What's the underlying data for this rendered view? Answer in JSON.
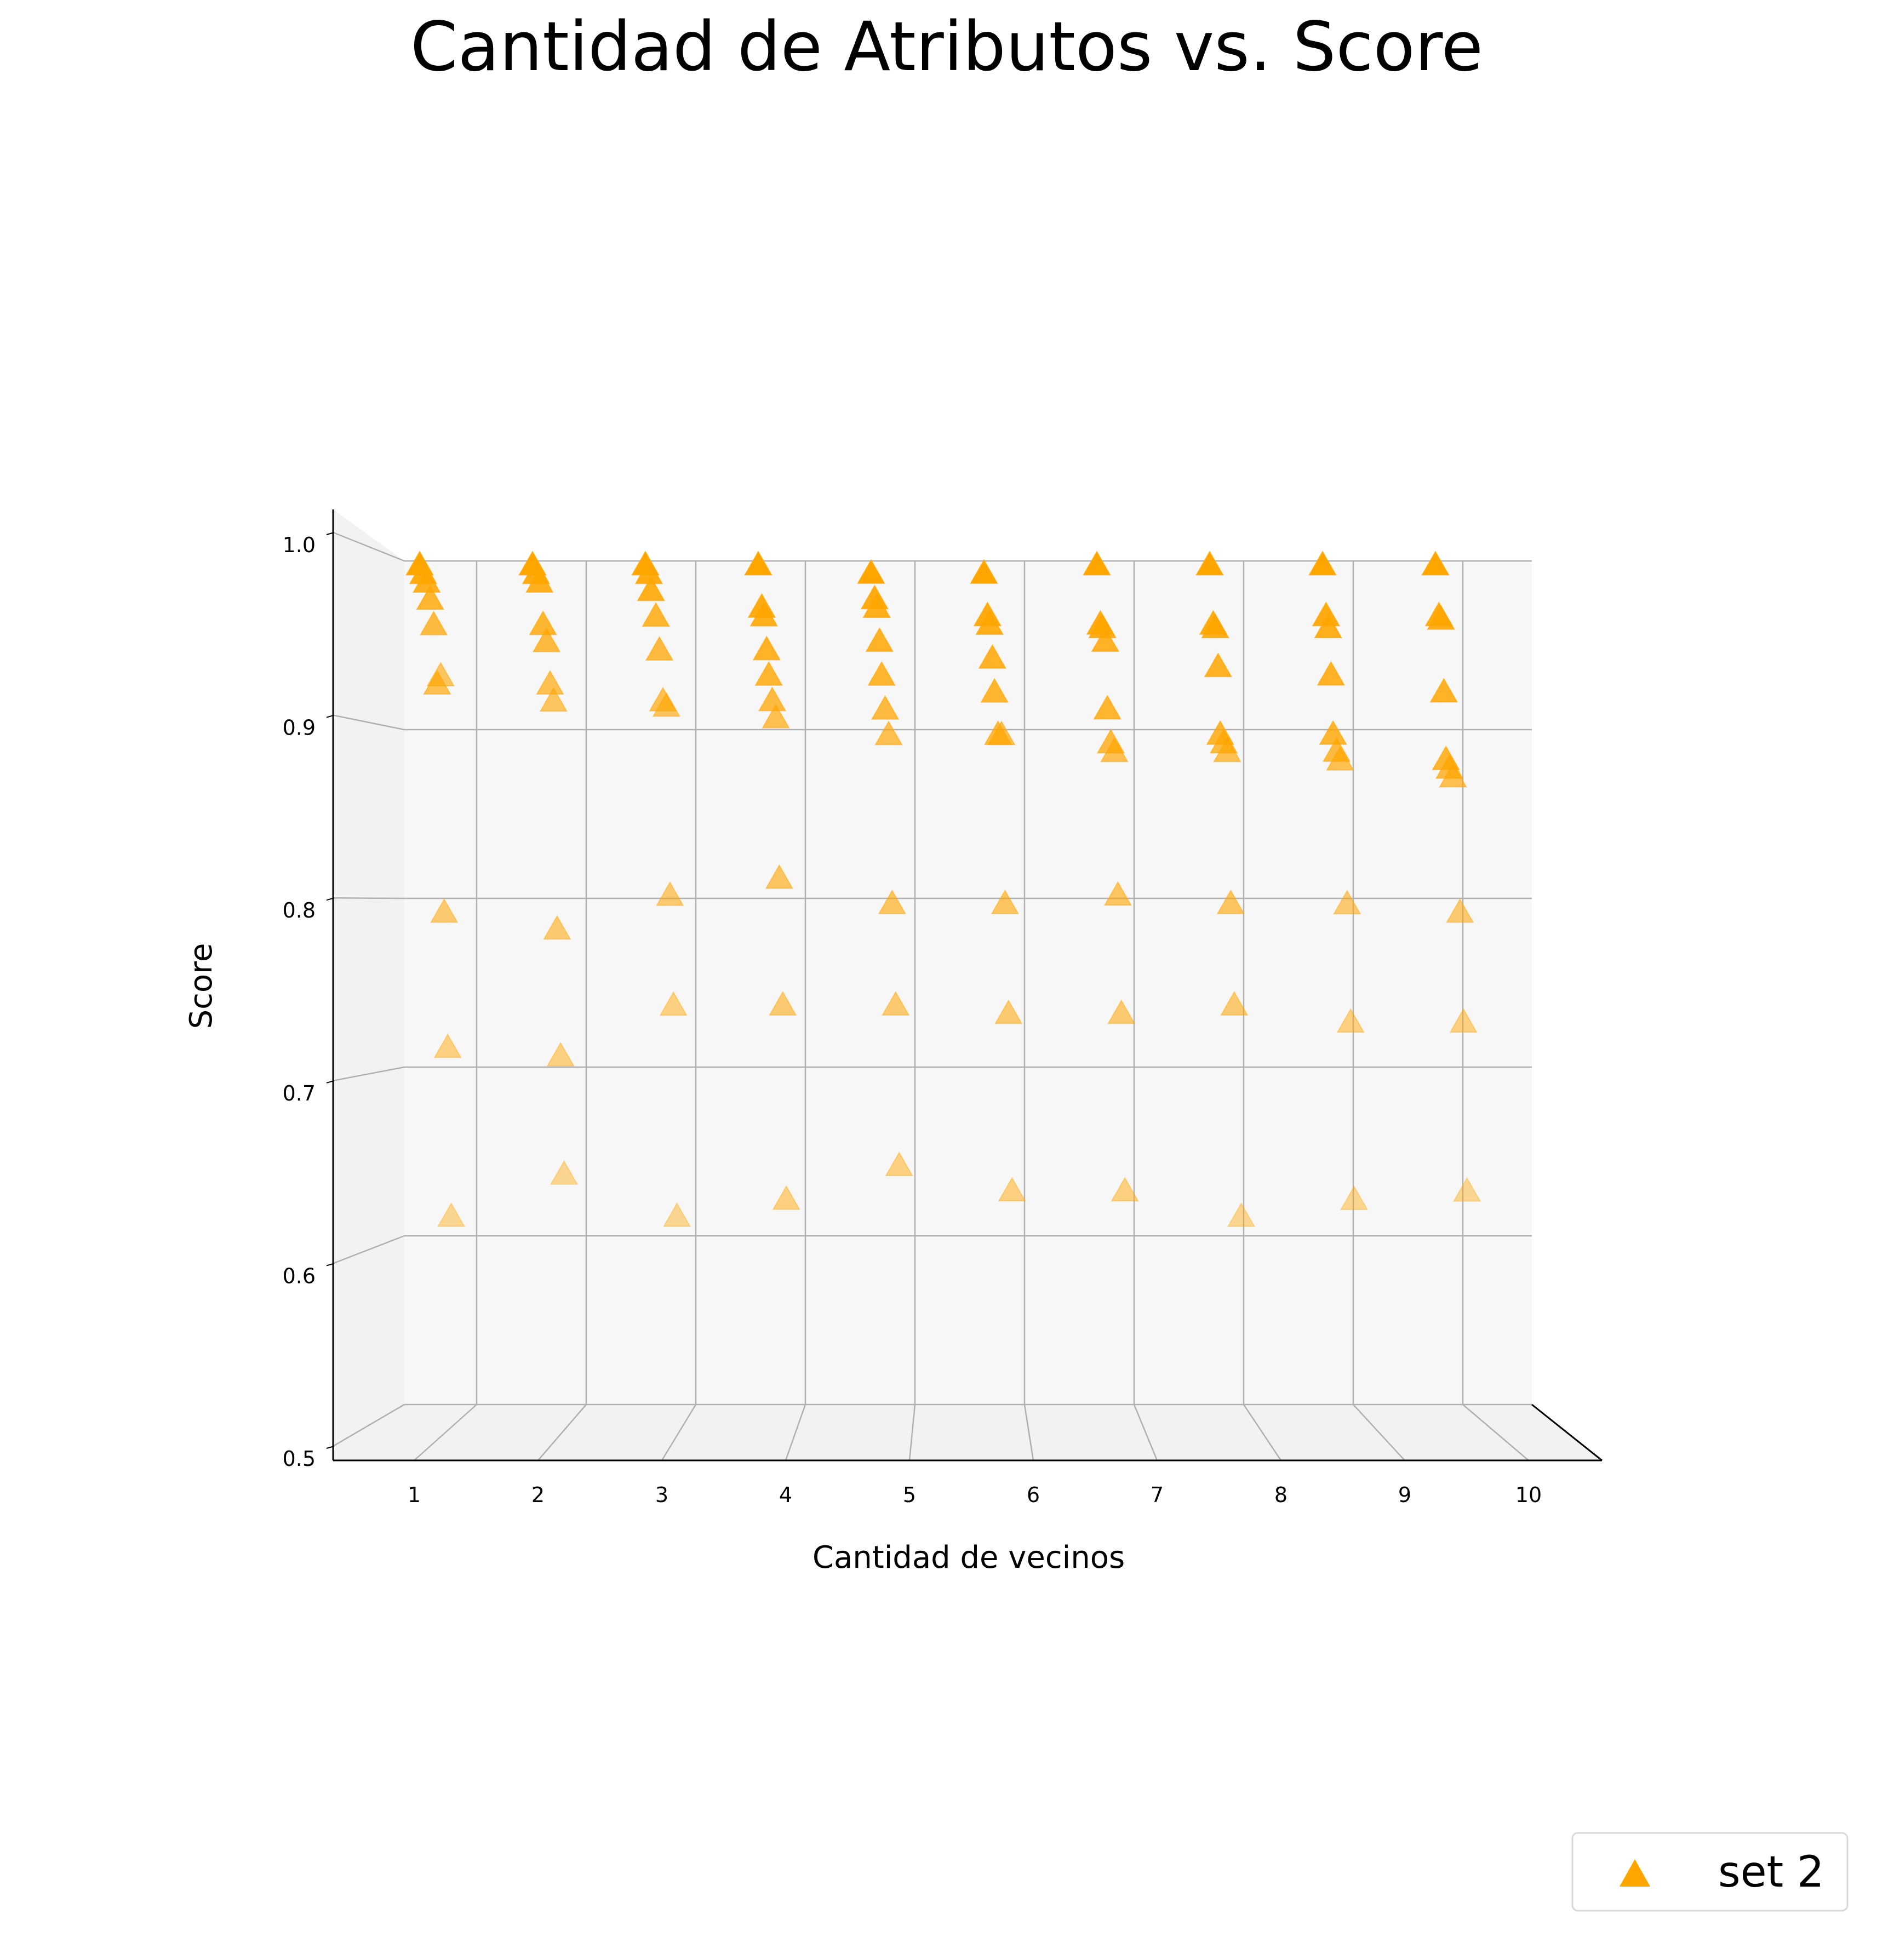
{
  "chart_data": {
    "type": "scatter",
    "title": "Cantidad de Atributos vs. Score",
    "xlabel": "Cantidad de vecinos",
    "ylabel": "Score",
    "xticks": [
      "1",
      "2",
      "3",
      "4",
      "5",
      "6",
      "7",
      "8",
      "9",
      "10"
    ],
    "yticks": [
      "0.5",
      "0.6",
      "0.7",
      "0.8",
      "0.9",
      "1.0"
    ],
    "xlim": [
      1,
      10
    ],
    "ylim": [
      0.5,
      1.0
    ],
    "grid": true,
    "projection": "3d",
    "legend_position": "bottom-right",
    "color": "#ffa500",
    "marker": "triangle-up",
    "series": [
      {
        "name": "set 2",
        "points": [
          {
            "x": 1,
            "y": 0.995,
            "depth": 0
          },
          {
            "x": 1,
            "y": 0.99,
            "depth": 0.05
          },
          {
            "x": 1,
            "y": 0.985,
            "depth": 0.1
          },
          {
            "x": 1,
            "y": 0.975,
            "depth": 0.15
          },
          {
            "x": 1,
            "y": 0.96,
            "depth": 0.2
          },
          {
            "x": 1,
            "y": 0.93,
            "depth": 0.3
          },
          {
            "x": 1,
            "y": 0.925,
            "depth": 0.25
          },
          {
            "x": 1,
            "y": 0.79,
            "depth": 0.35
          },
          {
            "x": 1,
            "y": 0.71,
            "depth": 0.4
          },
          {
            "x": 1,
            "y": 0.61,
            "depth": 0.45
          },
          {
            "x": 2,
            "y": 0.995,
            "depth": 0
          },
          {
            "x": 2,
            "y": 0.99,
            "depth": 0.05
          },
          {
            "x": 2,
            "y": 0.985,
            "depth": 0.1
          },
          {
            "x": 2,
            "y": 0.96,
            "depth": 0.15
          },
          {
            "x": 2,
            "y": 0.95,
            "depth": 0.2
          },
          {
            "x": 2,
            "y": 0.925,
            "depth": 0.25
          },
          {
            "x": 2,
            "y": 0.915,
            "depth": 0.3
          },
          {
            "x": 2,
            "y": 0.78,
            "depth": 0.35
          },
          {
            "x": 2,
            "y": 0.705,
            "depth": 0.4
          },
          {
            "x": 2,
            "y": 0.635,
            "depth": 0.45
          },
          {
            "x": 3,
            "y": 0.995,
            "depth": 0
          },
          {
            "x": 3,
            "y": 0.99,
            "depth": 0.05
          },
          {
            "x": 3,
            "y": 0.98,
            "depth": 0.08
          },
          {
            "x": 3,
            "y": 0.965,
            "depth": 0.15
          },
          {
            "x": 3,
            "y": 0.945,
            "depth": 0.2
          },
          {
            "x": 3,
            "y": 0.915,
            "depth": 0.25
          },
          {
            "x": 3,
            "y": 0.912,
            "depth": 0.3
          },
          {
            "x": 3,
            "y": 0.8,
            "depth": 0.35
          },
          {
            "x": 3,
            "y": 0.735,
            "depth": 0.4
          },
          {
            "x": 3,
            "y": 0.61,
            "depth": 0.45
          },
          {
            "x": 4,
            "y": 0.995,
            "depth": 0
          },
          {
            "x": 4,
            "y": 0.97,
            "depth": 0.05
          },
          {
            "x": 4,
            "y": 0.965,
            "depth": 0.08
          },
          {
            "x": 4,
            "y": 0.945,
            "depth": 0.12
          },
          {
            "x": 4,
            "y": 0.93,
            "depth": 0.15
          },
          {
            "x": 4,
            "y": 0.915,
            "depth": 0.2
          },
          {
            "x": 4,
            "y": 0.905,
            "depth": 0.25
          },
          {
            "x": 4,
            "y": 0.81,
            "depth": 0.3
          },
          {
            "x": 4,
            "y": 0.735,
            "depth": 0.35
          },
          {
            "x": 4,
            "y": 0.62,
            "depth": 0.4
          },
          {
            "x": 5,
            "y": 0.99,
            "depth": 0
          },
          {
            "x": 5,
            "y": 0.975,
            "depth": 0.05
          },
          {
            "x": 5,
            "y": 0.97,
            "depth": 0.08
          },
          {
            "x": 5,
            "y": 0.95,
            "depth": 0.12
          },
          {
            "x": 5,
            "y": 0.93,
            "depth": 0.15
          },
          {
            "x": 5,
            "y": 0.91,
            "depth": 0.2
          },
          {
            "x": 5,
            "y": 0.895,
            "depth": 0.25
          },
          {
            "x": 5,
            "y": 0.795,
            "depth": 0.3
          },
          {
            "x": 5,
            "y": 0.735,
            "depth": 0.35
          },
          {
            "x": 5,
            "y": 0.64,
            "depth": 0.4
          },
          {
            "x": 6,
            "y": 0.99,
            "depth": 0
          },
          {
            "x": 6,
            "y": 0.965,
            "depth": 0.05
          },
          {
            "x": 6,
            "y": 0.96,
            "depth": 0.08
          },
          {
            "x": 6,
            "y": 0.94,
            "depth": 0.12
          },
          {
            "x": 6,
            "y": 0.92,
            "depth": 0.15
          },
          {
            "x": 6,
            "y": 0.895,
            "depth": 0.2
          },
          {
            "x": 6,
            "y": 0.895,
            "depth": 0.25
          },
          {
            "x": 6,
            "y": 0.795,
            "depth": 0.3
          },
          {
            "x": 6,
            "y": 0.73,
            "depth": 0.35
          },
          {
            "x": 6,
            "y": 0.625,
            "depth": 0.4
          },
          {
            "x": 7,
            "y": 0.995,
            "depth": 0
          },
          {
            "x": 7,
            "y": 0.96,
            "depth": 0.05
          },
          {
            "x": 7,
            "y": 0.958,
            "depth": 0.08
          },
          {
            "x": 7,
            "y": 0.95,
            "depth": 0.12
          },
          {
            "x": 7,
            "y": 0.91,
            "depth": 0.15
          },
          {
            "x": 7,
            "y": 0.89,
            "depth": 0.2
          },
          {
            "x": 7,
            "y": 0.885,
            "depth": 0.25
          },
          {
            "x": 7,
            "y": 0.8,
            "depth": 0.3
          },
          {
            "x": 7,
            "y": 0.73,
            "depth": 0.35
          },
          {
            "x": 7,
            "y": 0.625,
            "depth": 0.4
          },
          {
            "x": 8,
            "y": 0.995,
            "depth": 0
          },
          {
            "x": 8,
            "y": 0.96,
            "depth": 0.05
          },
          {
            "x": 8,
            "y": 0.958,
            "depth": 0.08
          },
          {
            "x": 8,
            "y": 0.935,
            "depth": 0.12
          },
          {
            "x": 8,
            "y": 0.895,
            "depth": 0.15
          },
          {
            "x": 8,
            "y": 0.89,
            "depth": 0.2
          },
          {
            "x": 8,
            "y": 0.885,
            "depth": 0.25
          },
          {
            "x": 8,
            "y": 0.795,
            "depth": 0.3
          },
          {
            "x": 8,
            "y": 0.735,
            "depth": 0.35
          },
          {
            "x": 8,
            "y": 0.61,
            "depth": 0.45
          },
          {
            "x": 9,
            "y": 0.995,
            "depth": 0
          },
          {
            "x": 9,
            "y": 0.965,
            "depth": 0.05
          },
          {
            "x": 9,
            "y": 0.958,
            "depth": 0.08
          },
          {
            "x": 9,
            "y": 0.93,
            "depth": 0.12
          },
          {
            "x": 9,
            "y": 0.895,
            "depth": 0.15
          },
          {
            "x": 9,
            "y": 0.885,
            "depth": 0.2
          },
          {
            "x": 9,
            "y": 0.88,
            "depth": 0.25
          },
          {
            "x": 9,
            "y": 0.795,
            "depth": 0.35
          },
          {
            "x": 9,
            "y": 0.725,
            "depth": 0.4
          },
          {
            "x": 9,
            "y": 0.62,
            "depth": 0.45
          },
          {
            "x": 10,
            "y": 0.995,
            "depth": 0
          },
          {
            "x": 10,
            "y": 0.965,
            "depth": 0.05
          },
          {
            "x": 10,
            "y": 0.963,
            "depth": 0.08
          },
          {
            "x": 10,
            "y": 0.92,
            "depth": 0.12
          },
          {
            "x": 10,
            "y": 0.88,
            "depth": 0.15
          },
          {
            "x": 10,
            "y": 0.875,
            "depth": 0.2
          },
          {
            "x": 10,
            "y": 0.87,
            "depth": 0.25
          },
          {
            "x": 10,
            "y": 0.79,
            "depth": 0.35
          },
          {
            "x": 10,
            "y": 0.725,
            "depth": 0.4
          },
          {
            "x": 10,
            "y": 0.625,
            "depth": 0.45
          }
        ]
      }
    ]
  },
  "legend": {
    "label": "set 2"
  }
}
